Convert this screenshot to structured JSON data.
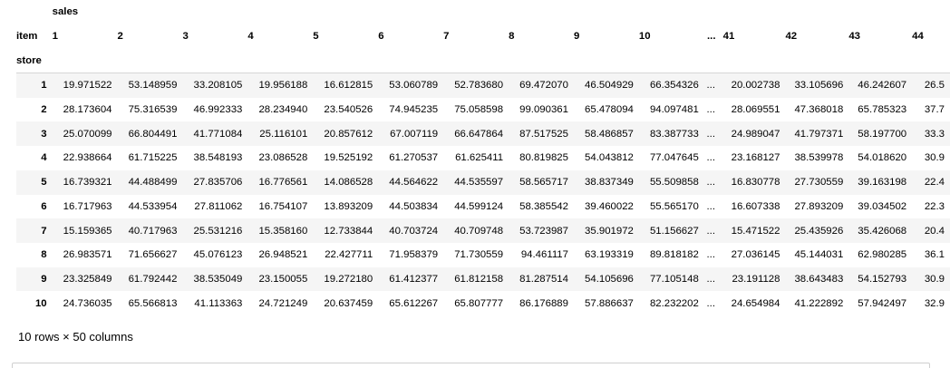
{
  "table": {
    "top_header": "sales",
    "columns_label": "item",
    "index_name": "store",
    "columns": [
      "1",
      "2",
      "3",
      "4",
      "5",
      "6",
      "7",
      "8",
      "9",
      "10",
      "...",
      "41",
      "42",
      "43",
      "44"
    ],
    "rows": [
      {
        "index": "1",
        "values": [
          "19.971522",
          "53.148959",
          "33.208105",
          "19.956188",
          "16.612815",
          "53.060789",
          "52.783680",
          "69.472070",
          "46.504929",
          "66.354326",
          "...",
          "20.002738",
          "33.105696",
          "46.242607",
          "26.5"
        ]
      },
      {
        "index": "2",
        "values": [
          "28.173604",
          "75.316539",
          "46.992333",
          "28.234940",
          "23.540526",
          "74.945235",
          "75.058598",
          "99.090361",
          "65.478094",
          "94.097481",
          "...",
          "28.069551",
          "47.368018",
          "65.785323",
          "37.7"
        ]
      },
      {
        "index": "3",
        "values": [
          "25.070099",
          "66.804491",
          "41.771084",
          "25.116101",
          "20.857612",
          "67.007119",
          "66.647864",
          "87.517525",
          "58.486857",
          "83.387733",
          "...",
          "24.989047",
          "41.797371",
          "58.197700",
          "33.3"
        ]
      },
      {
        "index": "4",
        "values": [
          "22.938664",
          "61.715225",
          "38.548193",
          "23.086528",
          "19.525192",
          "61.270537",
          "61.625411",
          "80.819825",
          "54.043812",
          "77.047645",
          "...",
          "23.168127",
          "38.539978",
          "54.018620",
          "30.9"
        ]
      },
      {
        "index": "5",
        "values": [
          "16.739321",
          "44.488499",
          "27.835706",
          "16.776561",
          "14.086528",
          "44.564622",
          "44.535597",
          "58.565717",
          "38.837349",
          "55.509858",
          "...",
          "16.830778",
          "27.730559",
          "39.163198",
          "22.4"
        ]
      },
      {
        "index": "6",
        "values": [
          "16.717963",
          "44.533954",
          "27.811062",
          "16.754107",
          "13.893209",
          "44.503834",
          "44.599124",
          "58.385542",
          "39.460022",
          "55.565170",
          "...",
          "16.607338",
          "27.893209",
          "39.034502",
          "22.3"
        ]
      },
      {
        "index": "7",
        "values": [
          "15.159365",
          "40.717963",
          "25.531216",
          "15.358160",
          "12.733844",
          "40.703724",
          "40.709748",
          "53.723987",
          "35.901972",
          "51.156627",
          "...",
          "15.471522",
          "25.435926",
          "35.426068",
          "20.4"
        ]
      },
      {
        "index": "8",
        "values": [
          "26.983571",
          "71.656627",
          "45.076123",
          "26.948521",
          "22.427711",
          "71.958379",
          "71.730559",
          "94.461117",
          "63.193319",
          "89.818182",
          "...",
          "27.036145",
          "45.144031",
          "62.980285",
          "36.1"
        ]
      },
      {
        "index": "9",
        "values": [
          "23.325849",
          "61.792442",
          "38.535049",
          "23.150055",
          "19.272180",
          "61.412377",
          "61.812158",
          "81.287514",
          "54.105696",
          "77.105148",
          "...",
          "23.191128",
          "38.643483",
          "54.152793",
          "30.9"
        ]
      },
      {
        "index": "10",
        "values": [
          "24.736035",
          "65.566813",
          "41.113363",
          "24.721249",
          "20.637459",
          "65.612267",
          "65.807777",
          "86.176889",
          "57.886637",
          "82.232202",
          "...",
          "24.654984",
          "41.222892",
          "57.942497",
          "32.9"
        ]
      }
    ]
  },
  "shape_note": "10 rows × 50 columns"
}
